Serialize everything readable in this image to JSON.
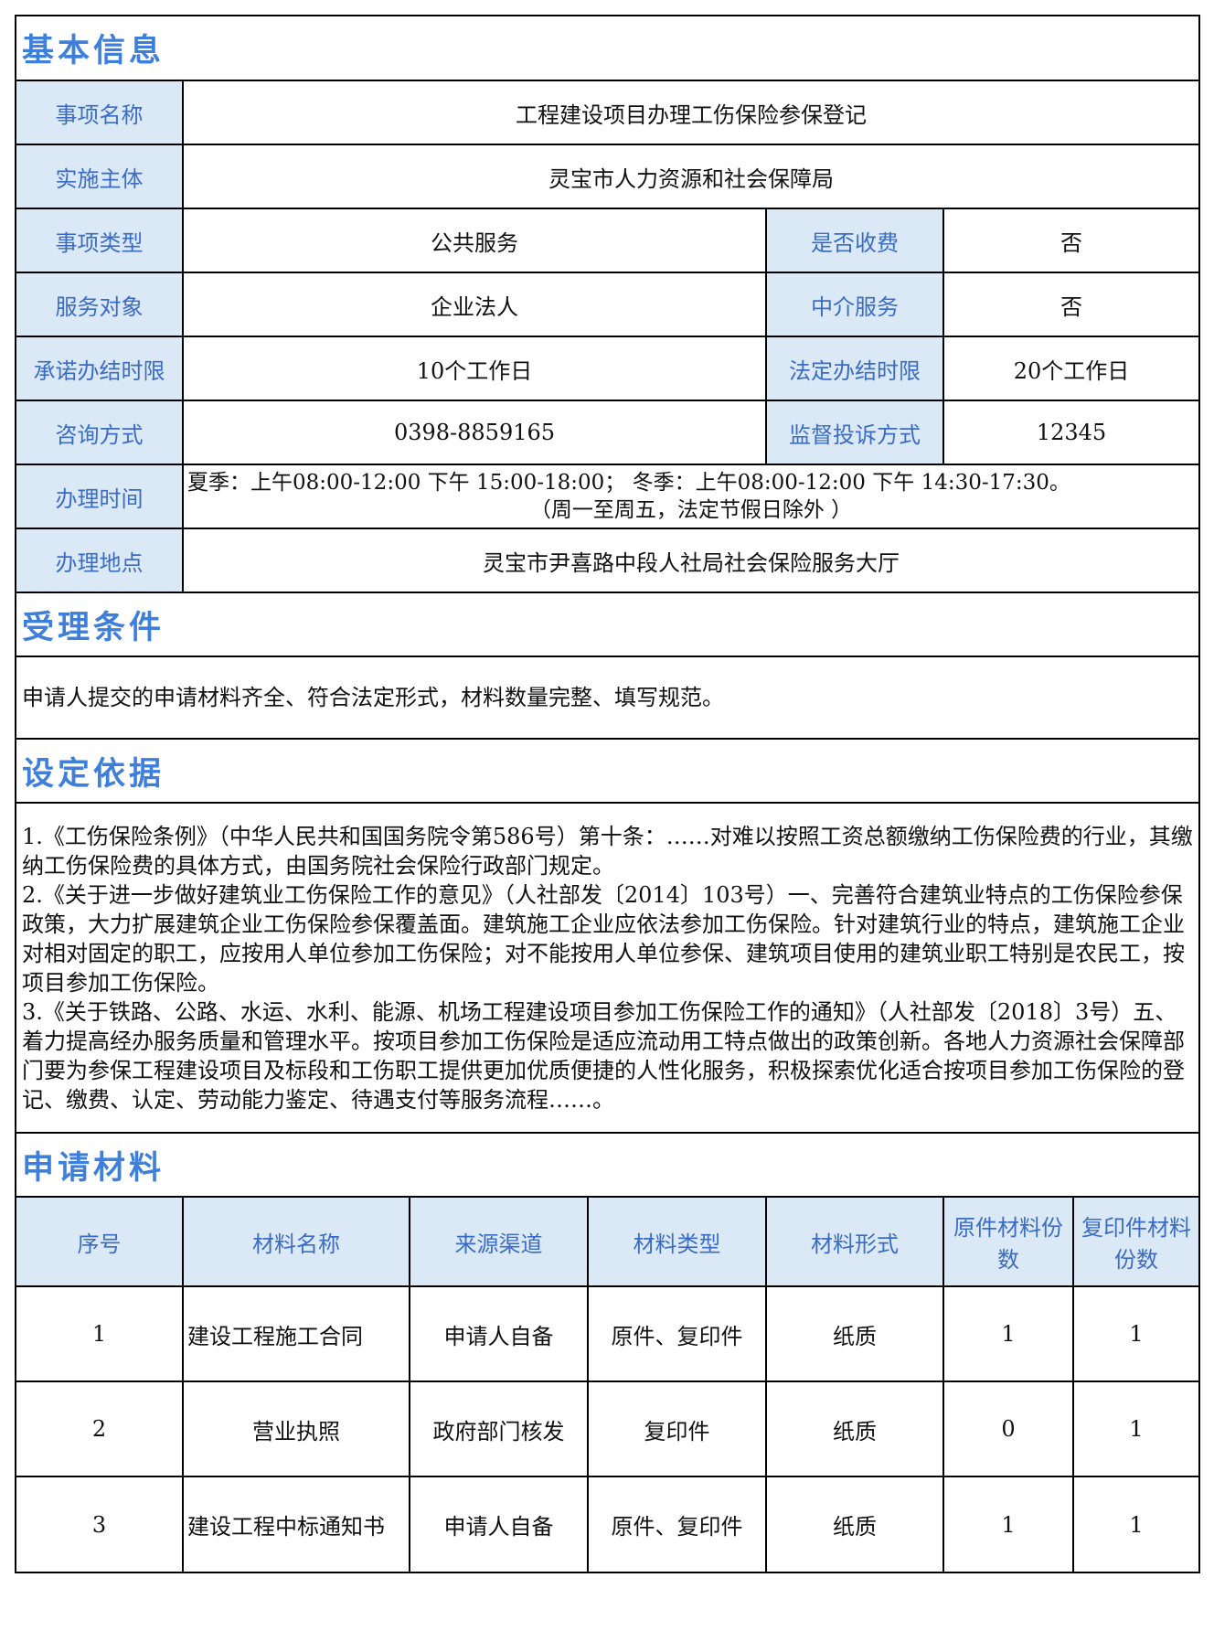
{
  "basic": {
    "title": "基本信息",
    "item_name_label": "事项名称",
    "item_name": "工程建设项目办理工伤保险参保登记",
    "subject_label": "实施主体",
    "subject": "灵宝市人力资源和社会保障局",
    "type_label": "事项类型",
    "type": "公共服务",
    "fee_label": "是否收费",
    "fee": "否",
    "target_label": "服务对象",
    "target": "企业法人",
    "agency_label": "中介服务",
    "agency": "否",
    "promise_label": "承诺办结时限",
    "promise": "10个工作日",
    "legal_label": "法定办结时限",
    "legal": "20个工作日",
    "consult_label": "咨询方式",
    "consult": "0398-8859165",
    "complaint_label": "监督投诉方式",
    "complaint": "12345",
    "hours_label": "办理时间",
    "hours_line1": "夏季：上午08:00-12:00 下午 15:00-18:00； 冬季：上午08:00-12:00 下午 14:30-17:30。",
    "hours_line2": "（周一至周五，法定节假日除外 ）",
    "place_label": "办理地点",
    "place": "灵宝市尹喜路中段人社局社会保险服务大厅"
  },
  "conditions": {
    "title": "受理条件",
    "text": "申请人提交的申请材料齐全、符合法定形式，材料数量完整、填写规范。"
  },
  "basis": {
    "title": "设定依据",
    "paragraphs": [
      "1.《工伤保险条例》（中华人民共和国国务院令第586号）第十条：……对难以按照工资总额缴纳工伤保险费的行业，其缴纳工伤保险费的具体方式，由国务院社会保险行政部门规定。",
      "2.《关于进一步做好建筑业工伤保险工作的意见》（人社部发〔2014〕103号）一、完善符合建筑业特点的工伤保险参保政策，大力扩展建筑企业工伤保险参保覆盖面。建筑施工企业应依法参加工伤保险。针对建筑行业的特点，建筑施工企业对相对固定的职工，应按用人单位参加工伤保险；对不能按用人单位参保、建筑项目使用的建筑业职工特别是农民工，按项目参加工伤保险。",
      "3.《关于铁路、公路、水运、水利、能源、机场工程建设项目参加工伤保险工作的通知》（人社部发〔2018〕3号）五、着力提高经办服务质量和管理水平。按项目参加工伤保险是适应流动用工特点做出的政策创新。各地人力资源社会保障部门要为参保工程建设项目及标段和工伤职工提供更加优质便捷的人性化服务，积极探索优化适合按项目参加工伤保险的登记、缴费、认定、劳动能力鉴定、待遇支付等服务流程……。"
    ]
  },
  "materials": {
    "title": "申请材料",
    "headers": [
      "序号",
      "材料名称",
      "来源渠道",
      "材料类型",
      "材料形式",
      "原件材料份数",
      "复印件材料份数"
    ],
    "rows": [
      [
        "1",
        "建设工程施工合同",
        "申请人自备",
        "原件、复印件",
        "纸质",
        "1",
        "1"
      ],
      [
        "2",
        "营业执照",
        "政府部门核发",
        "复印件",
        "纸质",
        "0",
        "1"
      ],
      [
        "3",
        "建设工程中标通知书",
        "申请人自备",
        "原件、复印件",
        "纸质",
        "1",
        "1"
      ]
    ]
  }
}
